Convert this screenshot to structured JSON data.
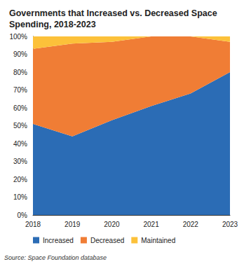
{
  "chart_data": {
    "type": "area",
    "title": "Governments that Increased vs. Decreased Space Spending, 2018-2023",
    "annotations": [
      "Source: Space Foundation database"
    ],
    "categories": [
      "2018",
      "2019",
      "2020",
      "2021",
      "2022",
      "2023"
    ],
    "series": [
      {
        "name": "Increased",
        "color": "#2b6cb5",
        "values": [
          51,
          44,
          53,
          61,
          68,
          80
        ]
      },
      {
        "name": "Decreased",
        "color": "#f07d35",
        "values": [
          42,
          52,
          44,
          39,
          32,
          17
        ]
      },
      {
        "name": "Maintained",
        "color": "#fcc13a",
        "values": [
          7,
          4,
          3,
          0,
          0,
          3
        ]
      }
    ],
    "stacked": true,
    "ylim": [
      0,
      100
    ],
    "yticks": [
      {
        "value": 0,
        "label": "0%"
      },
      {
        "value": 10,
        "label": "10%"
      },
      {
        "value": 20,
        "label": "20%"
      },
      {
        "value": 30,
        "label": "30%"
      },
      {
        "value": 40,
        "label": "40%"
      },
      {
        "value": 50,
        "label": "50%"
      },
      {
        "value": 60,
        "label": "60%"
      },
      {
        "value": 70,
        "label": "70%"
      },
      {
        "value": 80,
        "label": "80%"
      },
      {
        "value": 90,
        "label": "90%"
      },
      {
        "value": 100,
        "label": "100%"
      }
    ],
    "grid": false,
    "legend": "bottom",
    "data_labels": false
  }
}
